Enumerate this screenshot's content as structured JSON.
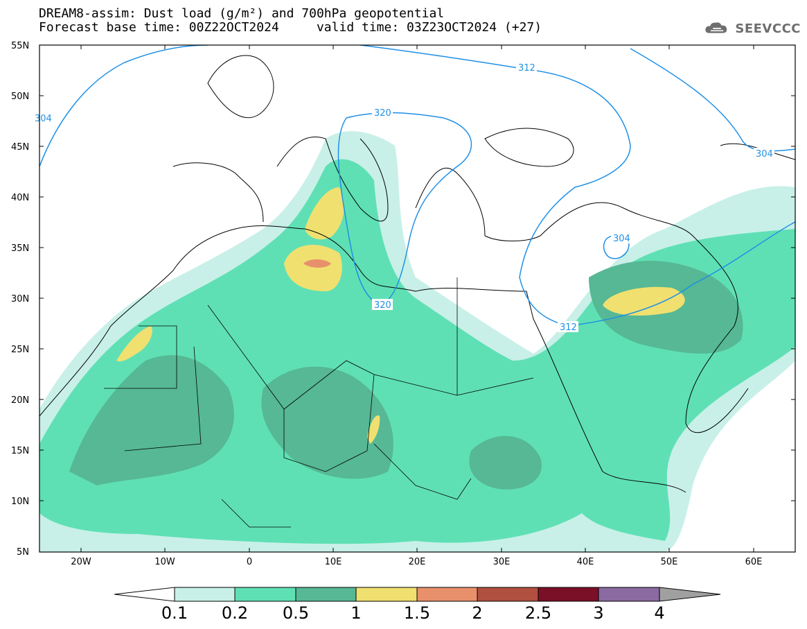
{
  "header": {
    "line1": "DREAM8-assim: Dust load (g/m²) and 700hPa geopotential",
    "base_label": "Forecast base time: 00Z22OCT2024",
    "valid_label": "valid time: 03Z23OCT2024 (+27)"
  },
  "logo": {
    "text": "SEEVCCC",
    "icon": "cloud-icon"
  },
  "map": {
    "lat_labels": [
      "55N",
      "50N",
      "45N",
      "40N",
      "35N",
      "30N",
      "25N",
      "20N",
      "15N",
      "10N",
      "5N"
    ],
    "lon_labels": [
      "20W",
      "10W",
      "0",
      "10E",
      "20E",
      "30E",
      "40E",
      "50E",
      "60E"
    ],
    "contour_labels": [
      "304",
      "312",
      "320",
      "320",
      "312",
      "304",
      "304"
    ]
  },
  "colorbar": {
    "labels": [
      "0.1",
      "0.2",
      "0.5",
      "1",
      "1.5",
      "2",
      "2.5",
      "3",
      "4"
    ],
    "colors": [
      "#c8f0e8",
      "#5fe0b4",
      "#56b894",
      "#f0e070",
      "#e8906c",
      "#b05040",
      "#7a1028",
      "#8a6aa0",
      "#a0a0a0"
    ]
  }
}
